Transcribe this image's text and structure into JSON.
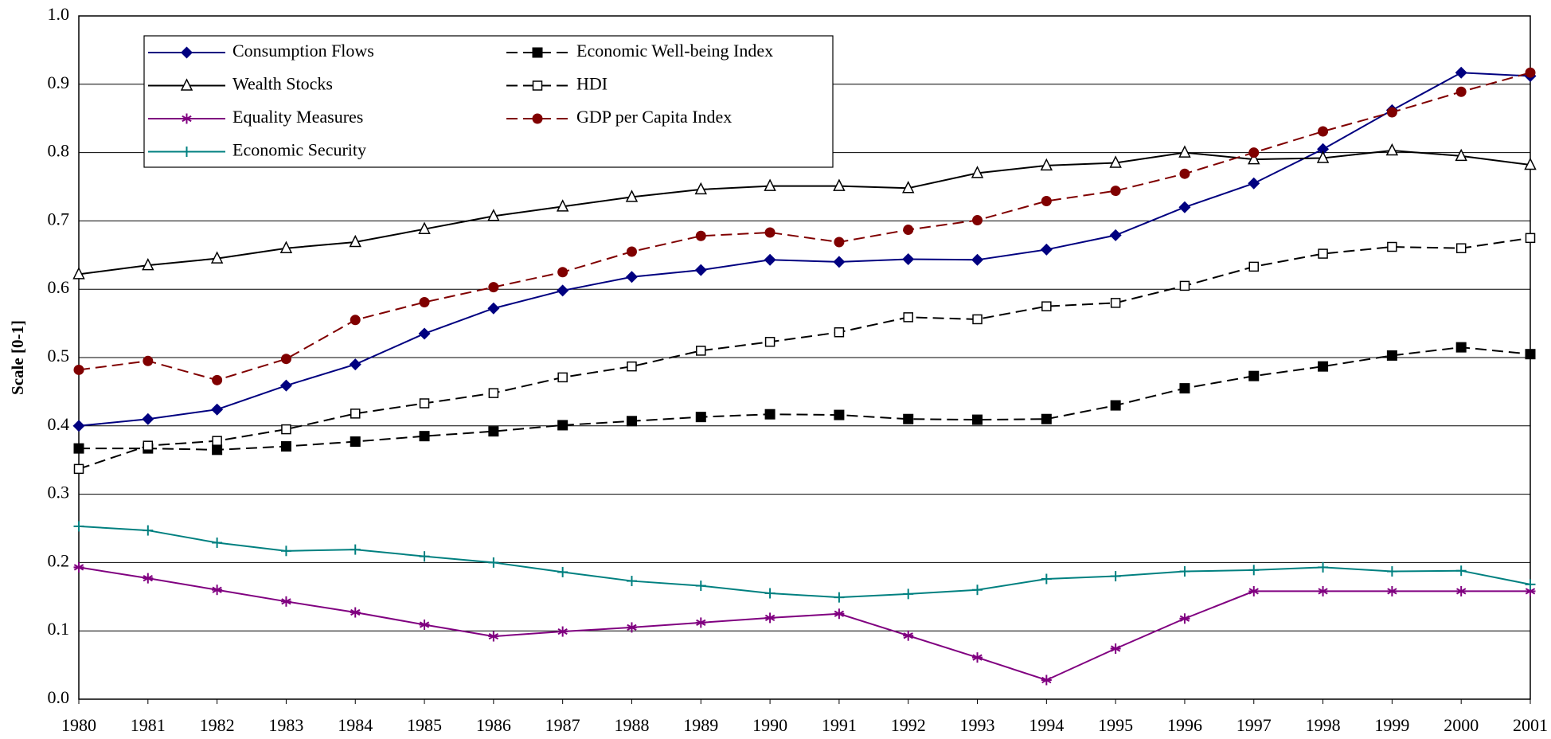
{
  "chart_data": {
    "type": "line",
    "y_label": "Scale [0-1]",
    "categories": [
      "1980",
      "1981",
      "1982",
      "1983",
      "1984",
      "1985",
      "1986",
      "1987",
      "1988",
      "1989",
      "1990",
      "1991",
      "1992",
      "1993",
      "1994",
      "1995",
      "1996",
      "1997",
      "1998",
      "1999",
      "2000",
      "2001"
    ],
    "ylim": [
      0,
      1
    ],
    "yticks": [
      {
        "value": 0,
        "label": "0.0"
      },
      0.1,
      0.2,
      0.3,
      0.4,
      0.5,
      0.6,
      0.7,
      0.8,
      0.9,
      {
        "value": 1,
        "label": "1.0"
      }
    ],
    "grid": true,
    "series": [
      {
        "name": "Consumption Flows",
        "color": "#000080",
        "marker": "diamond",
        "dash": false,
        "values": [
          0.4,
          0.41,
          0.424,
          0.459,
          0.49,
          0.535,
          0.572,
          0.598,
          0.618,
          0.628,
          0.643,
          0.64,
          0.644,
          0.643,
          0.658,
          0.679,
          0.72,
          0.755,
          0.805,
          0.862,
          0.917,
          0.912
        ]
      },
      {
        "name": "Wealth Stocks",
        "color": "#000000",
        "marker": "triangle-open",
        "dash": false,
        "values": [
          0.622,
          0.635,
          0.645,
          0.66,
          0.669,
          0.688,
          0.707,
          0.721,
          0.735,
          0.746,
          0.751,
          0.751,
          0.748,
          0.77,
          0.781,
          0.785,
          0.8,
          0.79,
          0.792,
          0.803,
          0.795,
          0.782
        ]
      },
      {
        "name": "Equality Measures",
        "color": "#800080",
        "marker": "asterisk",
        "dash": false,
        "values": [
          0.193,
          0.177,
          0.16,
          0.143,
          0.127,
          0.109,
          0.092,
          0.099,
          0.105,
          0.112,
          0.119,
          0.125,
          0.093,
          0.061,
          0.028,
          0.074,
          0.118,
          0.158,
          0.158,
          0.158,
          0.158,
          0.158
        ]
      },
      {
        "name": "Economic Security",
        "color": "#008080",
        "marker": "plus",
        "dash": false,
        "values": [
          0.253,
          0.247,
          0.229,
          0.217,
          0.219,
          0.209,
          0.2,
          0.186,
          0.173,
          0.166,
          0.155,
          0.149,
          0.154,
          0.16,
          0.176,
          0.18,
          0.187,
          0.189,
          0.193,
          0.187,
          0.188,
          0.168
        ]
      },
      {
        "name": "Economic Well-being Index",
        "color": "#000000",
        "marker": "square",
        "dash": true,
        "values": [
          0.367,
          0.367,
          0.365,
          0.37,
          0.377,
          0.385,
          0.392,
          0.401,
          0.407,
          0.413,
          0.417,
          0.416,
          0.41,
          0.409,
          0.41,
          0.43,
          0.455,
          0.473,
          0.487,
          0.503,
          0.515,
          0.505
        ]
      },
      {
        "name": "HDI",
        "color": "#000000",
        "marker": "square-open",
        "dash": true,
        "values": [
          0.337,
          0.371,
          0.378,
          0.395,
          0.418,
          0.433,
          0.448,
          0.471,
          0.487,
          0.51,
          0.523,
          0.537,
          0.559,
          0.556,
          0.575,
          0.58,
          0.605,
          0.633,
          0.652,
          0.662,
          0.66,
          0.675
        ]
      },
      {
        "name": "GDP per Capita Index",
        "color": "#800000",
        "marker": "circle",
        "dash": true,
        "values": [
          0.482,
          0.495,
          0.467,
          0.498,
          0.555,
          0.581,
          0.603,
          0.625,
          0.655,
          0.678,
          0.683,
          0.669,
          0.687,
          0.701,
          0.729,
          0.744,
          0.769,
          0.8,
          0.831,
          0.859,
          0.889,
          0.917
        ]
      }
    ]
  }
}
